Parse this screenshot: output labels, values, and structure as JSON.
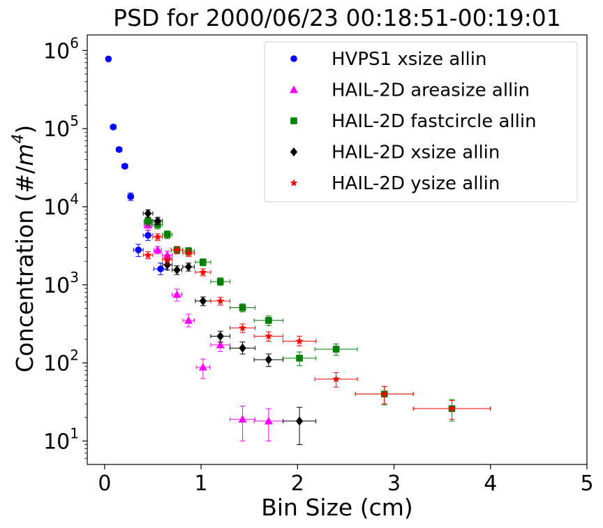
{
  "chart_data": {
    "type": "scatter",
    "title": "PSD for 2000/06/23 00:18:51-00:19:01",
    "xlabel": "Bin Size (cm)",
    "ylabel_prefix": "Concentration (#/",
    "ylabel_m": "m",
    "ylabel_exp": "4",
    "ylabel_suffix": ")",
    "xlim": [
      -0.18,
      5.0
    ],
    "ylim_log10": [
      0.7,
      6.2
    ],
    "x_ticks": [
      {
        "value": 0,
        "label": "0"
      },
      {
        "value": 1,
        "label": "1"
      },
      {
        "value": 2,
        "label": "2"
      },
      {
        "value": 3,
        "label": "3"
      },
      {
        "value": 4,
        "label": "4"
      },
      {
        "value": 5,
        "label": "5"
      }
    ],
    "y_ticks": [
      {
        "exp": 1,
        "base": "10",
        "sup": "1"
      },
      {
        "exp": 2,
        "base": "10",
        "sup": "2"
      },
      {
        "exp": 3,
        "base": "10",
        "sup": "3"
      },
      {
        "exp": 4,
        "base": "10",
        "sup": "4"
      },
      {
        "exp": 5,
        "base": "10",
        "sup": "5"
      },
      {
        "exp": 6,
        "base": "10",
        "sup": "6"
      }
    ],
    "legend_position": "upper right",
    "series": [
      {
        "name": "HVPS1 xsize allin",
        "color": "#0000ff",
        "marker": "circle",
        "points": [
          {
            "x": 0.04,
            "y": 780000,
            "xerr": 0.02,
            "ylo": 780000,
            "yhi": 780000
          },
          {
            "x": 0.09,
            "y": 105000,
            "xerr": 0.03,
            "ylo": 100000,
            "yhi": 110000
          },
          {
            "x": 0.15,
            "y": 54000,
            "xerr": 0.03,
            "ylo": 51000,
            "yhi": 57000
          },
          {
            "x": 0.21,
            "y": 33000,
            "xerr": 0.03,
            "ylo": 31000,
            "yhi": 35000
          },
          {
            "x": 0.27,
            "y": 13500,
            "xerr": 0.03,
            "ylo": 12000,
            "yhi": 15000
          },
          {
            "x": 0.35,
            "y": 2800,
            "xerr": 0.05,
            "ylo": 2300,
            "yhi": 3300
          },
          {
            "x": 0.45,
            "y": 4300,
            "xerr": 0.05,
            "ylo": 3700,
            "yhi": 5000
          },
          {
            "x": 0.58,
            "y": 1600,
            "xerr": 0.07,
            "ylo": 1350,
            "yhi": 1900
          }
        ]
      },
      {
        "name": "HAIL-2D areasize allin",
        "color": "#ff00ff",
        "marker": "triangle",
        "points": [
          {
            "x": 0.45,
            "y": 5800,
            "xerr": 0.04,
            "ylo": 5000,
            "yhi": 6600
          },
          {
            "x": 0.55,
            "y": 2800,
            "xerr": 0.04,
            "ylo": 2500,
            "yhi": 3100
          },
          {
            "x": 0.65,
            "y": 2400,
            "xerr": 0.05,
            "ylo": 2100,
            "yhi": 2700
          },
          {
            "x": 0.75,
            "y": 750,
            "xerr": 0.05,
            "ylo": 620,
            "yhi": 880
          },
          {
            "x": 0.87,
            "y": 350,
            "xerr": 0.06,
            "ylo": 290,
            "yhi": 420
          },
          {
            "x": 1.02,
            "y": 88,
            "xerr": 0.07,
            "ylo": 63,
            "yhi": 112
          },
          {
            "x": 1.2,
            "y": 170,
            "xerr": 0.1,
            "ylo": 140,
            "yhi": 210
          },
          {
            "x": 1.43,
            "y": 19,
            "xerr": 0.13,
            "ylo": 10,
            "yhi": 28
          },
          {
            "x": 1.7,
            "y": 18,
            "xerr": 0.15,
            "ylo": 10,
            "yhi": 26
          }
        ]
      },
      {
        "name": "HAIL-2D fastcircle allin",
        "color": "#008000",
        "marker": "square",
        "points": [
          {
            "x": 0.45,
            "y": 6500,
            "xerr": 0.04,
            "ylo": 5700,
            "yhi": 7300
          },
          {
            "x": 0.55,
            "y": 5900,
            "xerr": 0.05,
            "ylo": 5200,
            "yhi": 6600
          },
          {
            "x": 0.65,
            "y": 4400,
            "xerr": 0.05,
            "ylo": 3900,
            "yhi": 4900
          },
          {
            "x": 0.75,
            "y": 2800,
            "xerr": 0.06,
            "ylo": 2500,
            "yhi": 3100
          },
          {
            "x": 0.87,
            "y": 2700,
            "xerr": 0.06,
            "ylo": 2400,
            "yhi": 3000
          },
          {
            "x": 1.02,
            "y": 1950,
            "xerr": 0.08,
            "ylo": 1750,
            "yhi": 2150
          },
          {
            "x": 1.2,
            "y": 1100,
            "xerr": 0.1,
            "ylo": 980,
            "yhi": 1230
          },
          {
            "x": 1.43,
            "y": 510,
            "xerr": 0.13,
            "ylo": 450,
            "yhi": 570
          },
          {
            "x": 1.7,
            "y": 350,
            "xerr": 0.15,
            "ylo": 300,
            "yhi": 400
          },
          {
            "x": 2.02,
            "y": 115,
            "xerr": 0.17,
            "ylo": 92,
            "yhi": 138
          },
          {
            "x": 2.4,
            "y": 150,
            "xerr": 0.22,
            "ylo": 125,
            "yhi": 175
          },
          {
            "x": 2.9,
            "y": 40,
            "xerr": 0.3,
            "ylo": 29,
            "yhi": 50
          },
          {
            "x": 3.6,
            "y": 26,
            "xerr": 0.4,
            "ylo": 18,
            "yhi": 34
          }
        ]
      },
      {
        "name": "HAIL-2D xsize allin",
        "color": "#000000",
        "marker": "diamond",
        "points": [
          {
            "x": 0.45,
            "y": 8200,
            "xerr": 0.05,
            "ylo": 7300,
            "yhi": 9100
          },
          {
            "x": 0.55,
            "y": 6600,
            "xerr": 0.05,
            "ylo": 5900,
            "yhi": 7300
          },
          {
            "x": 0.65,
            "y": 1800,
            "xerr": 0.05,
            "ylo": 1550,
            "yhi": 2050
          },
          {
            "x": 0.75,
            "y": 1550,
            "xerr": 0.05,
            "ylo": 1350,
            "yhi": 1750
          },
          {
            "x": 0.87,
            "y": 1700,
            "xerr": 0.06,
            "ylo": 1500,
            "yhi": 1900
          },
          {
            "x": 1.02,
            "y": 620,
            "xerr": 0.08,
            "ylo": 540,
            "yhi": 700
          },
          {
            "x": 1.2,
            "y": 220,
            "xerr": 0.1,
            "ylo": 185,
            "yhi": 255
          },
          {
            "x": 1.43,
            "y": 155,
            "xerr": 0.13,
            "ylo": 130,
            "yhi": 185
          },
          {
            "x": 1.7,
            "y": 110,
            "xerr": 0.15,
            "ylo": 90,
            "yhi": 130
          },
          {
            "x": 2.02,
            "y": 18,
            "xerr": 0.17,
            "ylo": 9,
            "yhi": 27
          }
        ]
      },
      {
        "name": "HAIL-2D ysize allin",
        "color": "#ff0000",
        "marker": "star",
        "points": [
          {
            "x": 0.45,
            "y": 2400,
            "xerr": 0.05,
            "ylo": 2150,
            "yhi": 2650
          },
          {
            "x": 0.55,
            "y": 4100,
            "xerr": 0.05,
            "ylo": 3700,
            "yhi": 4500
          },
          {
            "x": 0.65,
            "y": 2100,
            "xerr": 0.05,
            "ylo": 1850,
            "yhi": 2350
          },
          {
            "x": 0.75,
            "y": 2800,
            "xerr": 0.06,
            "ylo": 2500,
            "yhi": 3100
          },
          {
            "x": 0.87,
            "y": 2550,
            "xerr": 0.06,
            "ylo": 2300,
            "yhi": 2800
          },
          {
            "x": 1.02,
            "y": 1450,
            "xerr": 0.08,
            "ylo": 1300,
            "yhi": 1600
          },
          {
            "x": 1.2,
            "y": 620,
            "xerr": 0.1,
            "ylo": 550,
            "yhi": 690
          },
          {
            "x": 1.43,
            "y": 280,
            "xerr": 0.13,
            "ylo": 245,
            "yhi": 315
          },
          {
            "x": 1.7,
            "y": 220,
            "xerr": 0.15,
            "ylo": 190,
            "yhi": 250
          },
          {
            "x": 2.02,
            "y": 190,
            "xerr": 0.17,
            "ylo": 165,
            "yhi": 220
          },
          {
            "x": 2.4,
            "y": 62,
            "xerr": 0.22,
            "ylo": 49,
            "yhi": 75
          },
          {
            "x": 2.9,
            "y": 40,
            "xerr": 0.3,
            "ylo": 30,
            "yhi": 50
          },
          {
            "x": 3.6,
            "y": 26,
            "xerr": 0.4,
            "ylo": 19,
            "yhi": 33
          }
        ]
      }
    ]
  }
}
